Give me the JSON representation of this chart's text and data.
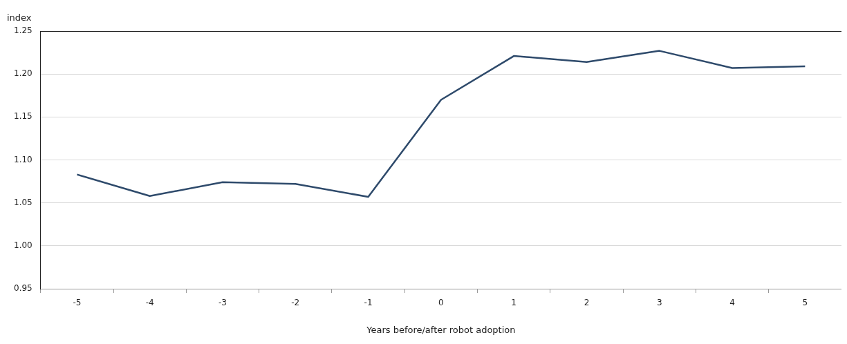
{
  "chart_data": {
    "type": "line",
    "ylabel": "index",
    "xlabel": "Years before/after robot adoption",
    "categories": [
      "-5",
      "-4",
      "-3",
      "-2",
      "-1",
      "0",
      "1",
      "2",
      "3",
      "4",
      "5"
    ],
    "series": [
      {
        "color": "#2e4a6b",
        "values": [
          1.083,
          1.058,
          1.074,
          1.072,
          1.057,
          1.17,
          1.221,
          1.214,
          1.227,
          1.207,
          1.209
        ]
      }
    ],
    "ylim": [
      0.95,
      1.25
    ],
    "yticks": [
      {
        "value": 0.95,
        "label": "0.95"
      },
      {
        "value": 1.0,
        "label": "1.00"
      },
      {
        "value": 1.05,
        "label": "1.05"
      },
      {
        "value": 1.1,
        "label": "1.10"
      },
      {
        "value": 1.15,
        "label": "1.15"
      },
      {
        "value": 1.2,
        "label": "1.20"
      },
      {
        "value": 1.25,
        "label": "1.25"
      }
    ],
    "grid": "y",
    "legend": false,
    "marker": "none",
    "line_style": "solid"
  }
}
